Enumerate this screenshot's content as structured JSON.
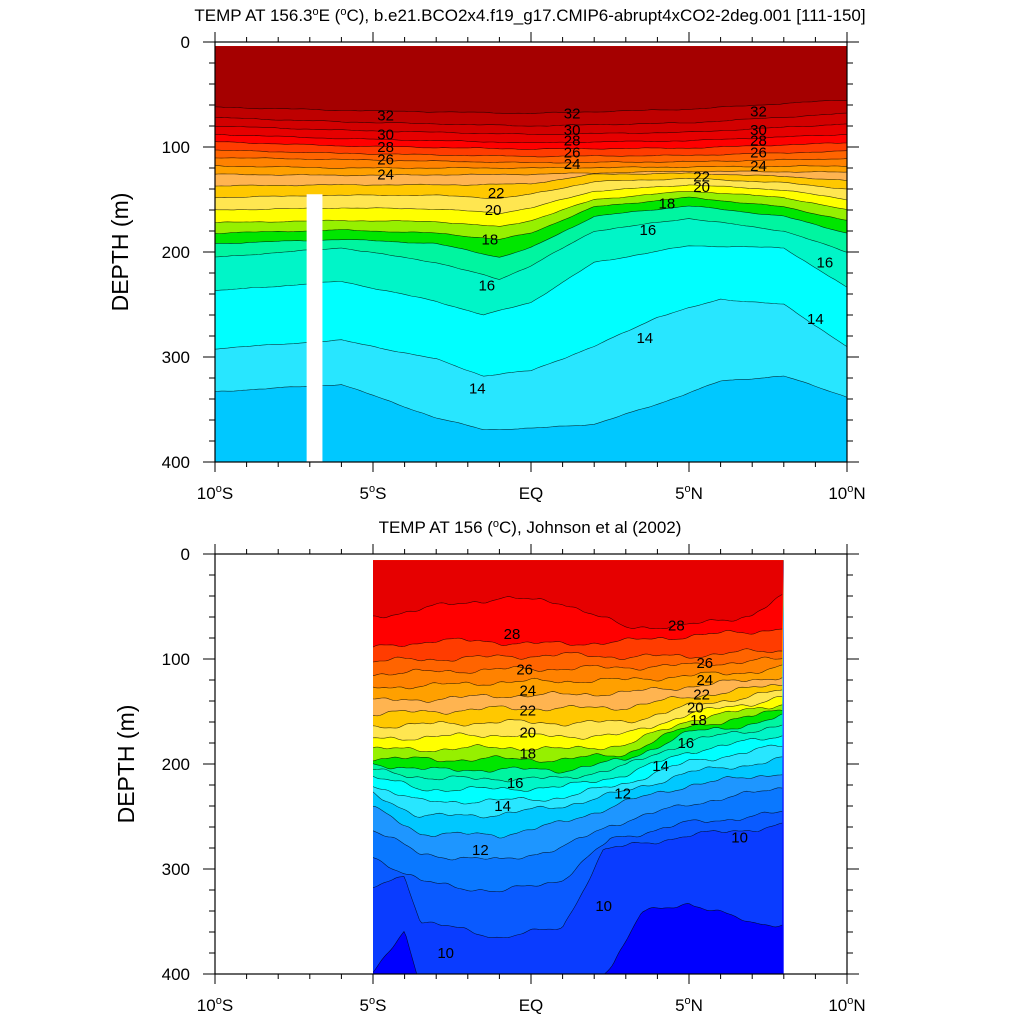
{
  "chart_data": [
    {
      "type": "contour",
      "title": "TEMP AT 156.3°E (°C), b.e21.BCO2x4.f19_g17.CMIP6-abrupt4xCO2-2deg.001 [111-150]",
      "title_parts": {
        "pre": "TEMP AT 156.3",
        "deg": "o",
        "mid": "E (",
        "deg2": "o",
        "post": "C), b.e21.BCO2x4.f19_g17.CMIP6-abrupt4xCO2-2deg.001 [111-150]"
      },
      "xlabel": "",
      "ylabel": "DEPTH (m)",
      "xlim": [
        -10,
        10
      ],
      "ylim": [
        400,
        0
      ],
      "x_ticks": [
        -10,
        -5,
        0,
        5,
        10
      ],
      "x_tick_labels": [
        "10°S",
        "5°S",
        "EQ",
        "5°N",
        "10°N"
      ],
      "y_ticks": [
        0,
        100,
        200,
        300,
        400
      ],
      "y_tick_labels": [
        "0",
        "100",
        "200",
        "300",
        "400"
      ],
      "data_extent": {
        "x": [
          -10,
          10
        ],
        "depth": [
          4,
          400
        ]
      },
      "missing_column": {
        "x": [
          -7.1,
          -6.6
        ],
        "depth": [
          145,
          400
        ]
      },
      "contour_labels": [
        {
          "x": -4.6,
          "depth": 70,
          "value": 32
        },
        {
          "x": -4.6,
          "depth": 88,
          "value": 30
        },
        {
          "x": -4.6,
          "depth": 100,
          "value": 28
        },
        {
          "x": -4.6,
          "depth": 112,
          "value": 26
        },
        {
          "x": -4.6,
          "depth": 126,
          "value": 24
        },
        {
          "x": -1.1,
          "depth": 144,
          "value": 22
        },
        {
          "x": -1.2,
          "depth": 160,
          "value": 20
        },
        {
          "x": -1.3,
          "depth": 188,
          "value": 18
        },
        {
          "x": -1.4,
          "depth": 232,
          "value": 16
        },
        {
          "x": -1.7,
          "depth": 330,
          "value": 14
        },
        {
          "x": 1.3,
          "depth": 68,
          "value": 32
        },
        {
          "x": 1.3,
          "depth": 84,
          "value": 30
        },
        {
          "x": 1.3,
          "depth": 94,
          "value": 28
        },
        {
          "x": 1.3,
          "depth": 105,
          "value": 26
        },
        {
          "x": 1.3,
          "depth": 116,
          "value": 24
        },
        {
          "x": 5.4,
          "depth": 128,
          "value": 22
        },
        {
          "x": 5.4,
          "depth": 138,
          "value": 20
        },
        {
          "x": 4.3,
          "depth": 154,
          "value": 18
        },
        {
          "x": 3.7,
          "depth": 179,
          "value": 16
        },
        {
          "x": 3.6,
          "depth": 282,
          "value": 14
        },
        {
          "x": 7.2,
          "depth": 66,
          "value": 32
        },
        {
          "x": 7.2,
          "depth": 84,
          "value": 30
        },
        {
          "x": 7.2,
          "depth": 94,
          "value": 28
        },
        {
          "x": 7.2,
          "depth": 105,
          "value": 26
        },
        {
          "x": 7.2,
          "depth": 118,
          "value": 24
        },
        {
          "x": 9.3,
          "depth": 210,
          "value": 16
        },
        {
          "x": 9.0,
          "depth": 264,
          "value": 14
        }
      ]
    },
    {
      "type": "contour",
      "title": "TEMP AT 156 (°C), Johnson et al (2002)",
      "title_parts": {
        "pre": "TEMP AT 156 (",
        "deg": "o",
        "post": "C), Johnson et al (2002)"
      },
      "xlabel": "",
      "ylabel": "DEPTH (m)",
      "xlim": [
        -10,
        10
      ],
      "ylim": [
        400,
        0
      ],
      "x_ticks": [
        -10,
        -5,
        0,
        5,
        10
      ],
      "x_tick_labels": [
        "10°S",
        "5°S",
        "EQ",
        "5°N",
        "10°N"
      ],
      "y_ticks": [
        0,
        100,
        200,
        300,
        400
      ],
      "y_tick_labels": [
        "0",
        "100",
        "200",
        "300",
        "400"
      ],
      "data_extent": {
        "x": [
          -5,
          8
        ],
        "depth": [
          6,
          400
        ]
      },
      "contour_labels": [
        {
          "x": -0.6,
          "depth": 76,
          "value": 28
        },
        {
          "x": -0.2,
          "depth": 110,
          "value": 26
        },
        {
          "x": -0.1,
          "depth": 130,
          "value": 24
        },
        {
          "x": -0.1,
          "depth": 149,
          "value": 22
        },
        {
          "x": -0.1,
          "depth": 170,
          "value": 20
        },
        {
          "x": -0.1,
          "depth": 190,
          "value": 18
        },
        {
          "x": -0.5,
          "depth": 218,
          "value": 16
        },
        {
          "x": -0.9,
          "depth": 240,
          "value": 14
        },
        {
          "x": -1.6,
          "depth": 282,
          "value": 12
        },
        {
          "x": -2.7,
          "depth": 380,
          "value": 10
        },
        {
          "x": 4.6,
          "depth": 68,
          "value": 28
        },
        {
          "x": 5.5,
          "depth": 104,
          "value": 26
        },
        {
          "x": 5.5,
          "depth": 120,
          "value": 24
        },
        {
          "x": 5.4,
          "depth": 134,
          "value": 22
        },
        {
          "x": 5.2,
          "depth": 146,
          "value": 20
        },
        {
          "x": 5.3,
          "depth": 158,
          "value": 18
        },
        {
          "x": 4.9,
          "depth": 180,
          "value": 16
        },
        {
          "x": 4.1,
          "depth": 202,
          "value": 14
        },
        {
          "x": 2.9,
          "depth": 228,
          "value": 12
        },
        {
          "x": 2.3,
          "depth": 335,
          "value": 10
        },
        {
          "x": 6.6,
          "depth": 270,
          "value": 10
        }
      ]
    }
  ]
}
